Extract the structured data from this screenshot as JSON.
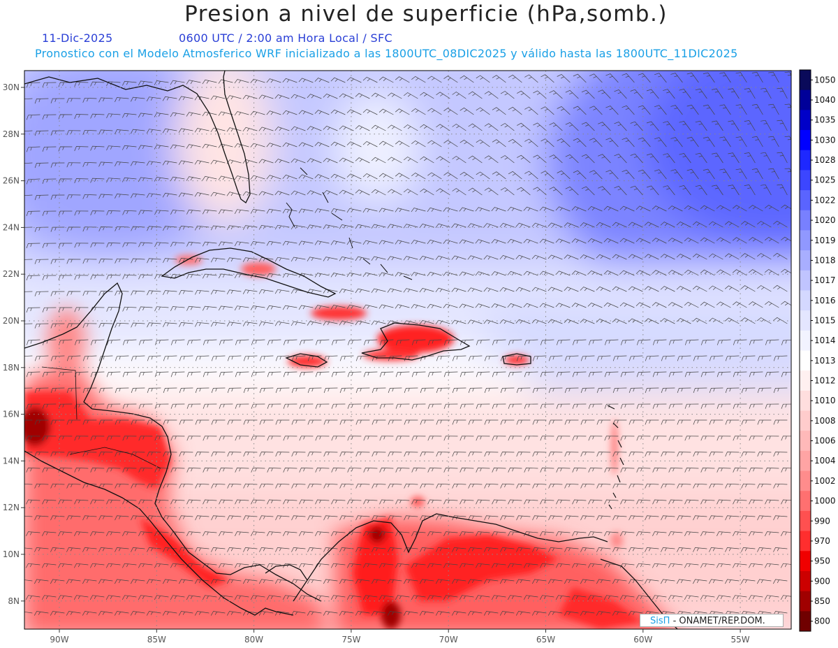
{
  "header": {
    "title": "Presion a nivel de superficie (hPa,somb.)",
    "date": "11-Dic-2025",
    "time": "0600 UTC / 2:00 am Hora Local / SFC",
    "forecast": "Pronostico con el Modelo Atmosferico WRF inicializado a las 1800UTC_08DIC2025 y válido hasta las  1800UTC_11DIC2025"
  },
  "axes": {
    "lat_labels": [
      "30N",
      "28N",
      "26N",
      "24N",
      "22N",
      "20N",
      "18N",
      "16N",
      "14N",
      "12N",
      "10N",
      "8N"
    ],
    "lon_labels": [
      "90W",
      "85W",
      "80W",
      "75W",
      "70W",
      "65W",
      "60W",
      "55W"
    ]
  },
  "colorbar": {
    "labels": [
      "1050",
      "1040",
      "1035",
      "1030",
      "1028",
      "1025",
      "1022",
      "1020",
      "1019",
      "1018",
      "1017",
      "1016",
      "1015",
      "1014",
      "1013",
      "1012",
      "1010",
      "1008",
      "1006",
      "1004",
      "1002",
      "1000",
      "990",
      "970",
      "950",
      "900",
      "850",
      "800"
    ],
    "colors": [
      "#0a0a5a",
      "#000099",
      "#0000c8",
      "#0000ff",
      "#1e28ff",
      "#3c46ff",
      "#5a64ff",
      "#7880ff",
      "#9098ff",
      "#a8aeff",
      "#c0c4ff",
      "#d4d8ff",
      "#e4e6ff",
      "#f2f3ff",
      "#ffffff",
      "#fff0f0",
      "#ffdede",
      "#ffcccc",
      "#ffb9b9",
      "#ffa4a4",
      "#ff8c8c",
      "#ff7070",
      "#ff5050",
      "#ff2e2e",
      "#f00000",
      "#cc0000",
      "#a00000",
      "#700000"
    ]
  },
  "credit": {
    "brand": "SisΠ",
    "org": "- ONAMET/REP.DOM."
  },
  "colors": {
    "title": "#222222",
    "date_text": "#2a3fd6",
    "forecast_text": "#1aa0e6",
    "land_high_pressure": "#ff2020",
    "deep_high_pressure": "#4a55ff"
  }
}
